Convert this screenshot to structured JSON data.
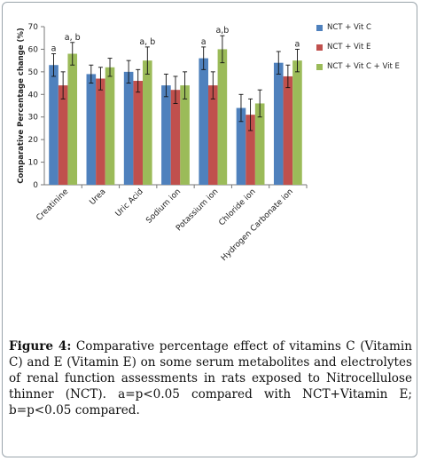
{
  "chart_data": {
    "type": "bar",
    "ylabel": "Comparative Percentage change (%)",
    "ylim": [
      0,
      70
    ],
    "yticks": [
      0,
      10,
      20,
      30,
      40,
      50,
      60,
      70
    ],
    "categories": [
      "Creatinine",
      "Urea",
      "Uric Acid",
      "Sodium ion",
      "Potassium ion",
      "Chloride ion",
      "Hydrogen Carbonate ion"
    ],
    "series": [
      {
        "name": "NCT + Vit C",
        "color": "#4f81bd",
        "values": [
          53,
          49,
          50,
          44,
          56,
          34,
          54
        ],
        "errors": [
          5,
          4,
          5,
          5,
          5,
          6,
          5
        ]
      },
      {
        "name": "NCT + Vit E",
        "color": "#c0504d",
        "values": [
          44,
          47,
          46,
          42,
          44,
          31,
          48
        ],
        "errors": [
          6,
          5,
          5,
          6,
          6,
          7,
          5
        ]
      },
      {
        "name": "NCT + Vit C + Vit E",
        "color": "#9bbb59",
        "values": [
          58,
          52,
          55,
          44,
          60,
          36,
          55
        ],
        "errors": [
          5,
          4,
          6,
          6,
          6,
          6,
          5
        ]
      }
    ],
    "annotations": [
      {
        "category": "Creatinine",
        "series": "NCT + Vit C",
        "text": "a"
      },
      {
        "category": "Creatinine",
        "series": "NCT + Vit C + Vit E",
        "text": "a, b"
      },
      {
        "category": "Uric Acid",
        "series": "NCT + Vit C + Vit E",
        "text": "a, b"
      },
      {
        "category": "Potassium ion",
        "series": "NCT + Vit C",
        "text": "a"
      },
      {
        "category": "Potassium ion",
        "series": "NCT + Vit C + Vit E",
        "text": "a,b"
      },
      {
        "category": "Hydrogen Carbonate ion",
        "series": "NCT + Vit C + Vit E",
        "text": "a"
      }
    ],
    "legend_position": "right",
    "grid": false
  },
  "caption": {
    "label": "Figure 4:",
    "text": " Comparative percentage effect of vitamins C (Vitamin C) and E (Vitamin E) on some serum metabolites and electrolytes of renal function assessments in rats exposed to Nitrocellulose thinner (NCT). a=p<0.05 compared with NCT+Vitamin E; b=p<0.05 compared."
  }
}
